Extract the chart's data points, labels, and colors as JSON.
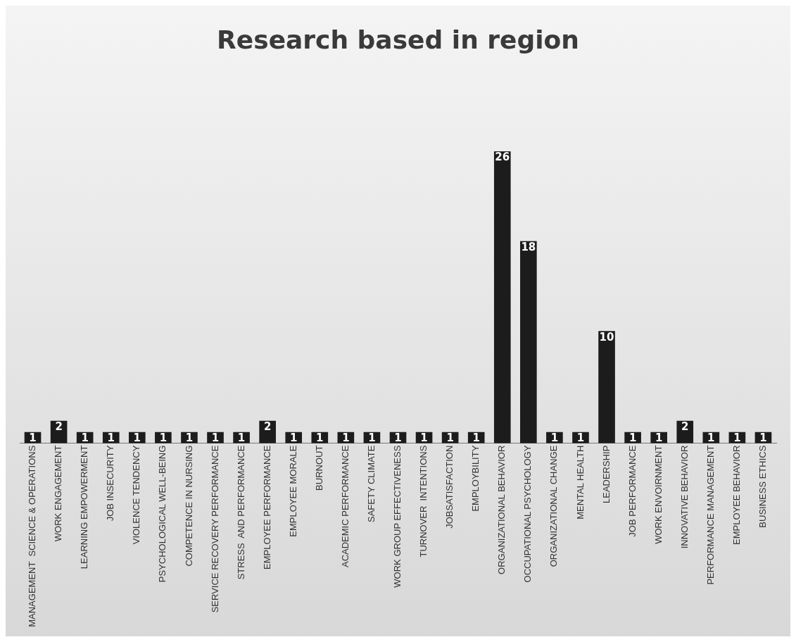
{
  "chart_data": {
    "type": "bar",
    "title": "Research based in region",
    "categories": [
      "MANAGEMENT  SCIENCE & OPERATIONS",
      "WORK ENGAGEMENT",
      "LEARNING EMPOWERMENT",
      "JOB INSECURITY",
      "VIOLENCE TENDENCY",
      "PSYCHOLOGICAL WELL-BEING",
      "COMPETENCE IN NURSING",
      "SERVICE RECOVERY PERFORMANCE",
      "STRESS  AND PERFORMANCE",
      "EMPLOYEE PERFORMANCE",
      "EMPLOYEE MORALE",
      "BURNOUT",
      "ACADEMIC PERFORMANCE",
      "SAFETY CLIMATE",
      "WORK GROUP EFFECTIVENESS",
      "TURNOVER  INTENTIONS",
      "JOBSATISFACTION",
      "EMPLOYBILITY",
      "ORGANIZATIONAL BEHAVIOR",
      "OCCUPATIONAL PSYCHOLOGY",
      "ORGANIZATIONAL CHANGE",
      "MENTAL HEALTH",
      "LEADERSHIP",
      "JOB PERFORMANCE",
      "WORK ENVOIRNMENT",
      "INNOVATIVE BEHAVIOR",
      "PERFORMANCE MANAGEMENT",
      "EMPLOYEE BEHAVIOR",
      "BUSINESS ETHICS"
    ],
    "values": [
      1,
      2,
      1,
      1,
      1,
      1,
      1,
      1,
      1,
      2,
      1,
      1,
      1,
      1,
      1,
      1,
      1,
      1,
      26,
      18,
      1,
      1,
      10,
      1,
      1,
      2,
      1,
      1,
      1
    ],
    "color": "#1c1c1c",
    "data_labels": true,
    "grid": false,
    "legend": false
  }
}
